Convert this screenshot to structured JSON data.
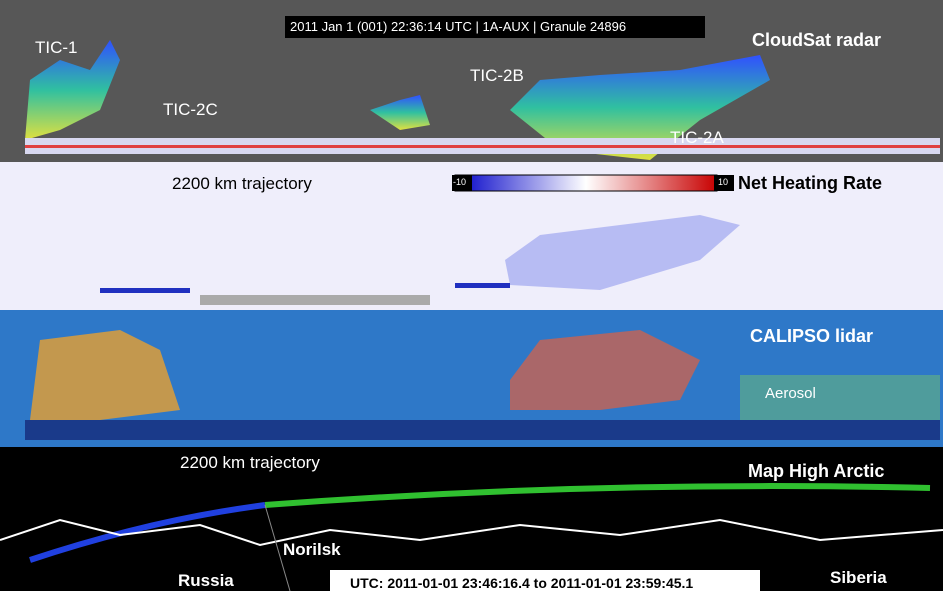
{
  "header": {
    "granule": "2011 Jan 1 (001) 22:36:14 UTC | 1A-AUX | Granule 24896"
  },
  "panels": [
    {
      "title": "CloudSat radar",
      "labels": [
        "TIC-1",
        "TIC-2C",
        "TIC-2B",
        "TIC-2A"
      ]
    },
    {
      "title": "Net Heating Rate",
      "subtitle": "2200 km trajectory",
      "colorbar": {
        "min": "-10",
        "max": "10"
      }
    },
    {
      "title": "CALIPSO lidar",
      "labels": [
        "Aerosol"
      ]
    },
    {
      "title": "Map High Arctic",
      "subtitle": "2200 km trajectory",
      "labels": [
        "Norilsk",
        "Russia",
        "Siberia"
      ],
      "time_range": "UTC:  2011-01-01 23:46:16.4  to  2011-01-01 23:59:45.1"
    }
  ]
}
